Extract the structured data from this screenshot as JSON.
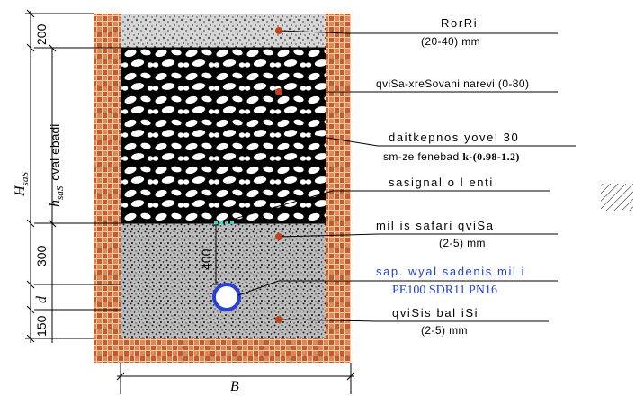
{
  "labels": {
    "gravel": "RorRi",
    "gravel_size": "(20-40) mm",
    "sand_gravel": "qviSa-xreSovani narevi (0-80)",
    "compaction_1": "daitkepnos yovel  30",
    "compaction_2": "sm-ze fenebad ",
    "compaction_k": "k-(0.98-1.2)",
    "tape": "sasignal o l enti",
    "fine_sand": "mil is safari qviSa",
    "fine_sand_size": "(2-5)  mm",
    "pipe_line1": "sap. wyal sadenis mil i",
    "pipe_line2": "PE100 SDR11 PN16",
    "base_sand": "qviSis bal iSi",
    "base_sand_size": "(2-5)  mm"
  },
  "dimensions": {
    "d200": "200",
    "d300": "300",
    "d400": "400",
    "d150": "150",
    "d_pipe": "d",
    "h_trench_main": "H",
    "h_trench_sub": "saS",
    "h_fill_main": "h",
    "h_fill_sub": "saS",
    "fill_suffix": "cval ebadi",
    "width": "B"
  },
  "colors": {
    "brick": "#c65a2a",
    "mortar": "#f2cba8",
    "pipe": "#2a3fd6",
    "tape": "#3ad7c8",
    "marker": "#c0441c"
  }
}
